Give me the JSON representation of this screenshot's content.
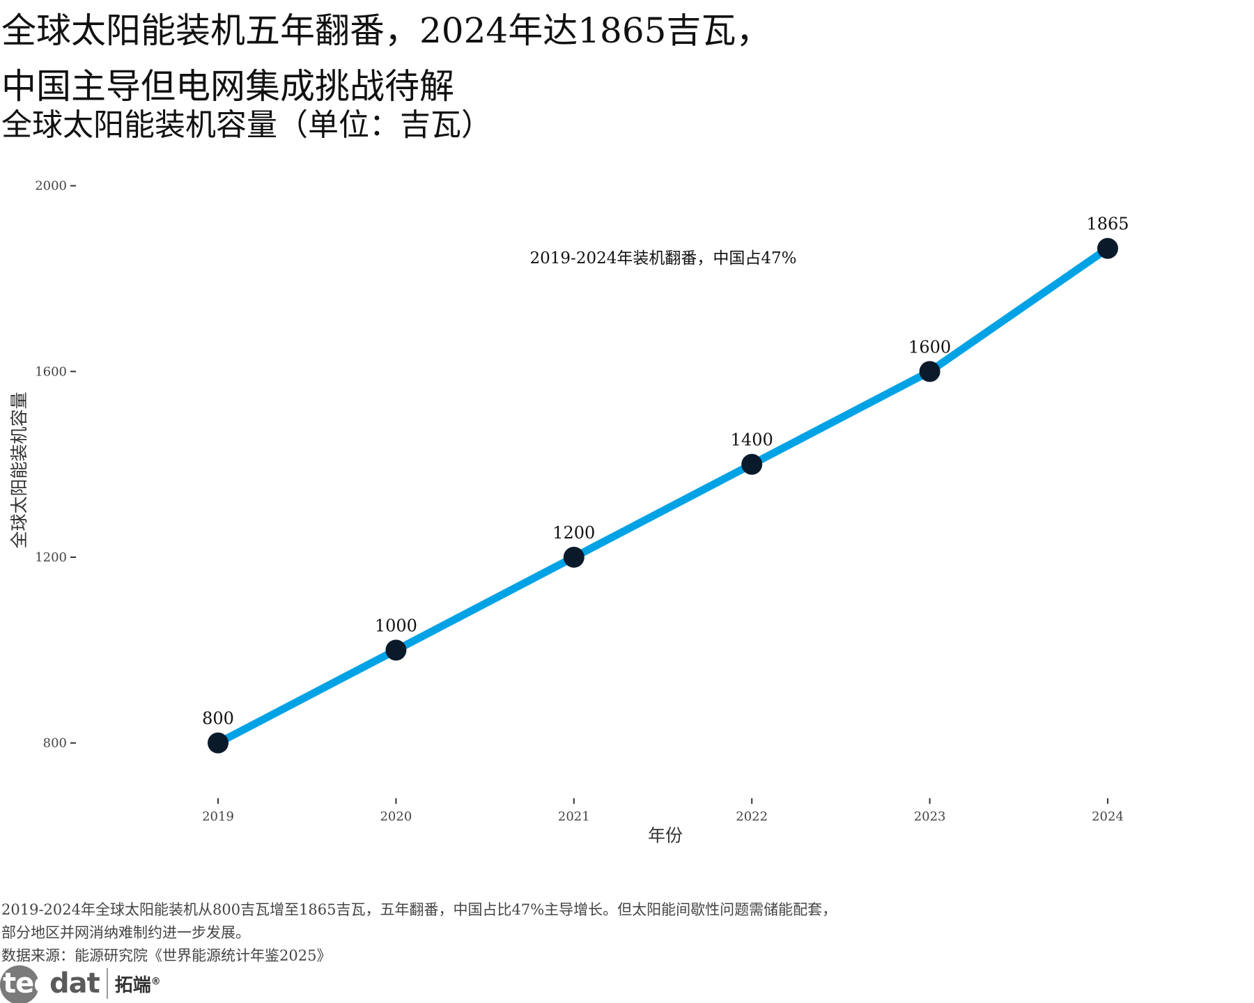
{
  "header": {
    "title_line1": "全球太阳能装机五年翻番，2024年达1865吉瓦，",
    "title_line2": "中国主导但电网集成挑战待解",
    "subtitle": "全球太阳能装机容量（单位：吉瓦）"
  },
  "chart_data": {
    "type": "line",
    "x": [
      2019,
      2020,
      2021,
      2022,
      2023,
      2024
    ],
    "categories": [
      "2019",
      "2020",
      "2021",
      "2022",
      "2023",
      "2024"
    ],
    "series": [
      {
        "values": [
          800,
          1000,
          1200,
          1400,
          1600,
          1865
        ]
      }
    ],
    "data_labels": [
      "800",
      "1000",
      "1200",
      "1400",
      "1600",
      "1865"
    ],
    "xlabel": "年份",
    "ylabel": "全球太阳能装机容量",
    "ylim": [
      780,
      2010
    ],
    "yticks": [
      800,
      1200,
      1600,
      2000
    ],
    "annotation": "2019-2024年装机翻番，中国占47%",
    "line_color": "#00a2e6",
    "point_color": "#0b1a2b",
    "grid": false
  },
  "caption": {
    "line1": "2019-2024年全球太阳能装机从800吉瓦增至1865吉瓦，五年翻番，中国占比47%主导增长。但太阳能间歇性问题需储能配套，",
    "line2": "部分地区并网消纳难制约进一步发展。",
    "source": "数据来源：能源研究院《世界能源统计年鉴2025》"
  },
  "logo": {
    "mark_part1": "tec",
    "mark_part2": "dat",
    "name": "拓端",
    "registered": "®"
  }
}
